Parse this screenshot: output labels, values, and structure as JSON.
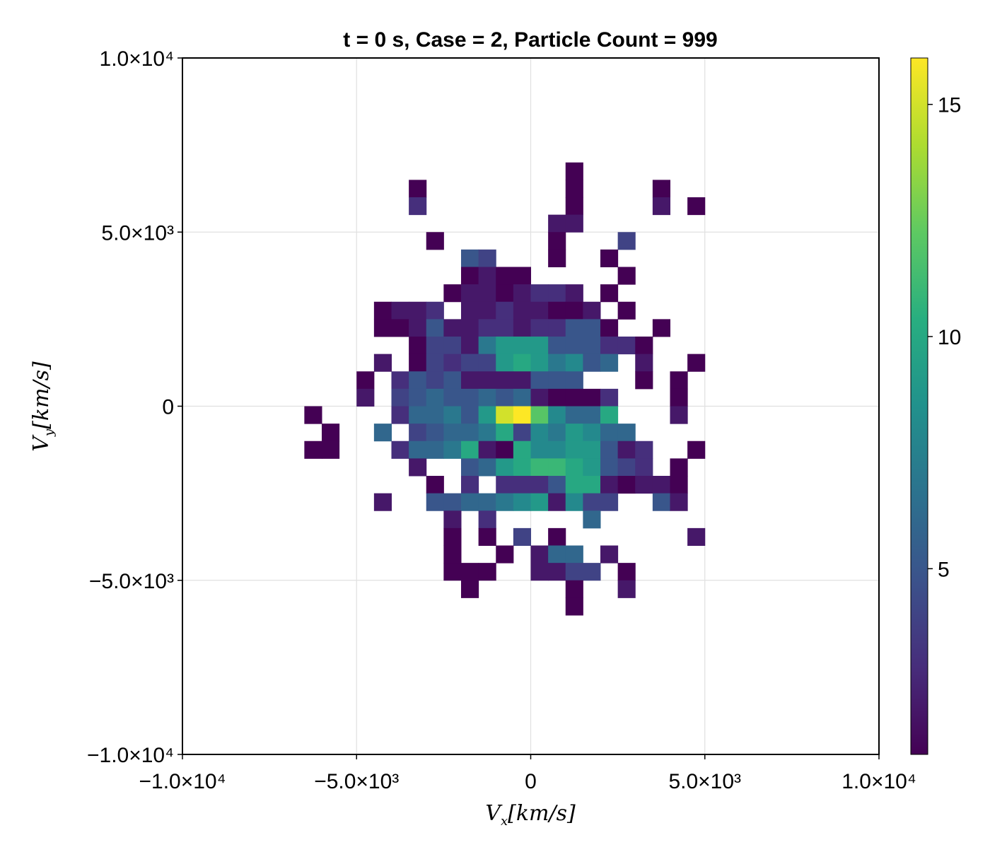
{
  "chart_data": {
    "type": "heatmap",
    "title": "t = 0 s, Case = 2, Particle Count = 999",
    "xlabel": {
      "main": "V",
      "sub": "x",
      "rest": "[km/s]"
    },
    "ylabel": {
      "main": "V",
      "sub": "y",
      "rest": "[km/s]"
    },
    "xlim": [
      -10000,
      10000
    ],
    "ylim": [
      -10000,
      10000
    ],
    "x_ticks": [
      {
        "value": -10000,
        "label": "−1.0×10⁴"
      },
      {
        "value": -5000,
        "label": "−5.0×10³"
      },
      {
        "value": 0,
        "label": "0"
      },
      {
        "value": 5000,
        "label": "5.0×10³"
      },
      {
        "value": 10000,
        "label": "1.0×10⁴"
      }
    ],
    "y_ticks": [
      {
        "value": -10000,
        "label": "−1.0×10⁴"
      },
      {
        "value": -5000,
        "label": "−5.0×10³"
      },
      {
        "value": 0,
        "label": "0"
      },
      {
        "value": 5000,
        "label": "5.0×10³"
      },
      {
        "value": 10000,
        "label": "1.0×10⁴"
      }
    ],
    "grid": true,
    "colormap": "viridis",
    "colorbar": {
      "range": [
        1,
        16
      ],
      "ticks": [
        {
          "value": 5,
          "label": "5"
        },
        {
          "value": 10,
          "label": "10"
        },
        {
          "value": 15,
          "label": "15"
        }
      ]
    },
    "bin_size": 500,
    "grid_origin": [
      -6500,
      -6000
    ],
    "rows": [
      "...............0........",
      "......0........0....0...",
      "......2........0....1.0.",
      "..............11........",
      ".......0......0...3.....",
      ".........43...0..0......",
      ".........0100.....0.....",
      "........01101221.0......",
      "....0112.11211001.0.....",
      "....00141122122440..0...",
      "......03316888444220....",
      "....1.032338986745.1..0.",
      "...0.24341111444...0.0..",
      "...1.3454454510002...0..",
      "0....255648ehb7559...1..",
      ".0..5.3455693768755.....",
      "00...255691097788412..0.",
      "......1..4589aa98432.0..",
      ".......0.2.22249910110..",
      "....1..44556781733..41..",
      "........1.2.....5.......",
      "........0.0.3.0.......1.",
      "........0..0.155.1......",
      "........000..1133.0.....",
      ".........0.....0..1.....",
      "...............0........"
    ]
  }
}
